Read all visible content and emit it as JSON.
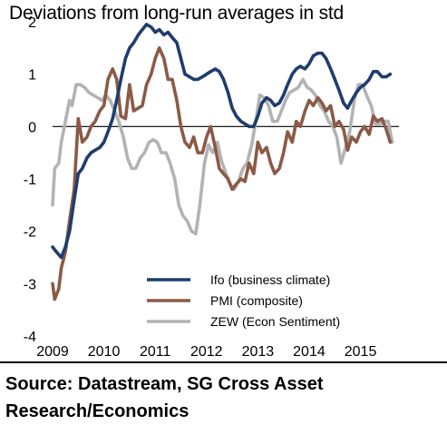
{
  "title": "Deviations from long-run averages in std",
  "source": "Source: Datastream, SG Cross Asset Research/Economics",
  "chart_data": {
    "type": "line",
    "title": "Deviations from long-run averages in std",
    "xlabel": "",
    "ylabel": "",
    "x_ticks": [
      "2009",
      "2010",
      "2011",
      "2012",
      "2013",
      "2014",
      "2015"
    ],
    "y_ticks": [
      2,
      1,
      0,
      -1,
      -2,
      -3,
      -4
    ],
    "xlim": [
      2009.0,
      2015.75
    ],
    "ylim": [
      -4,
      2
    ],
    "grid": "horizontal line at 0",
    "legend_position": "bottom-right",
    "series": [
      {
        "name": "Ifo (business climate)",
        "color": "#1f3d6e",
        "points": [
          [
            2009.0,
            -2.3
          ],
          [
            2009.08,
            -2.4
          ],
          [
            2009.17,
            -2.5
          ],
          [
            2009.25,
            -2.3
          ],
          [
            2009.33,
            -2.0
          ],
          [
            2009.42,
            -1.4
          ],
          [
            2009.5,
            -0.9
          ],
          [
            2009.58,
            -0.8
          ],
          [
            2009.67,
            -0.6
          ],
          [
            2009.75,
            -0.5
          ],
          [
            2009.83,
            -0.45
          ],
          [
            2009.92,
            -0.4
          ],
          [
            2010.0,
            -0.3
          ],
          [
            2010.08,
            -0.1
          ],
          [
            2010.17,
            0.15
          ],
          [
            2010.25,
            0.5
          ],
          [
            2010.33,
            0.9
          ],
          [
            2010.42,
            1.3
          ],
          [
            2010.5,
            1.5
          ],
          [
            2010.58,
            1.6
          ],
          [
            2010.67,
            1.75
          ],
          [
            2010.75,
            1.85
          ],
          [
            2010.83,
            1.95
          ],
          [
            2010.92,
            1.9
          ],
          [
            2011.0,
            1.8
          ],
          [
            2011.08,
            1.85
          ],
          [
            2011.17,
            1.75
          ],
          [
            2011.25,
            1.8
          ],
          [
            2011.33,
            1.7
          ],
          [
            2011.42,
            1.6
          ],
          [
            2011.5,
            1.3
          ],
          [
            2011.58,
            1.0
          ],
          [
            2011.67,
            0.95
          ],
          [
            2011.75,
            0.9
          ],
          [
            2011.83,
            0.9
          ],
          [
            2011.92,
            0.95
          ],
          [
            2012.0,
            1.0
          ],
          [
            2012.08,
            1.05
          ],
          [
            2012.17,
            1.1
          ],
          [
            2012.25,
            1.05
          ],
          [
            2012.33,
            0.9
          ],
          [
            2012.42,
            0.65
          ],
          [
            2012.5,
            0.35
          ],
          [
            2012.58,
            0.2
          ],
          [
            2012.67,
            0.1
          ],
          [
            2012.75,
            0.05
          ],
          [
            2012.83,
            0.0
          ],
          [
            2012.92,
            0.0
          ],
          [
            2013.0,
            0.2
          ],
          [
            2013.08,
            0.45
          ],
          [
            2013.17,
            0.55
          ],
          [
            2013.25,
            0.5
          ],
          [
            2013.33,
            0.4
          ],
          [
            2013.42,
            0.45
          ],
          [
            2013.5,
            0.6
          ],
          [
            2013.58,
            0.8
          ],
          [
            2013.67,
            1.0
          ],
          [
            2013.75,
            1.1
          ],
          [
            2013.83,
            1.15
          ],
          [
            2013.92,
            1.1
          ],
          [
            2014.0,
            1.2
          ],
          [
            2014.08,
            1.35
          ],
          [
            2014.17,
            1.4
          ],
          [
            2014.25,
            1.4
          ],
          [
            2014.33,
            1.3
          ],
          [
            2014.42,
            1.1
          ],
          [
            2014.5,
            0.9
          ],
          [
            2014.58,
            0.7
          ],
          [
            2014.67,
            0.45
          ],
          [
            2014.75,
            0.35
          ],
          [
            2014.83,
            0.5
          ],
          [
            2014.92,
            0.65
          ],
          [
            2015.0,
            0.75
          ],
          [
            2015.08,
            0.8
          ],
          [
            2015.17,
            0.9
          ],
          [
            2015.25,
            1.05
          ],
          [
            2015.33,
            1.05
          ],
          [
            2015.42,
            0.95
          ],
          [
            2015.5,
            0.95
          ],
          [
            2015.58,
            1.0
          ]
        ]
      },
      {
        "name": "PMI (composite)",
        "color": "#8b5a47",
        "points": [
          [
            2009.0,
            -3.0
          ],
          [
            2009.04,
            -3.3
          ],
          [
            2009.12,
            -3.1
          ],
          [
            2009.17,
            -2.7
          ],
          [
            2009.25,
            -2.4
          ],
          [
            2009.33,
            -1.8
          ],
          [
            2009.42,
            -1.2
          ],
          [
            2009.5,
            0.15
          ],
          [
            2009.58,
            -0.3
          ],
          [
            2009.67,
            -0.2
          ],
          [
            2009.75,
            0.0
          ],
          [
            2009.83,
            0.1
          ],
          [
            2009.92,
            0.3
          ],
          [
            2010.0,
            0.4
          ],
          [
            2010.08,
            0.9
          ],
          [
            2010.17,
            1.1
          ],
          [
            2010.25,
            0.9
          ],
          [
            2010.33,
            0.2
          ],
          [
            2010.42,
            0.15
          ],
          [
            2010.5,
            0.8
          ],
          [
            2010.58,
            0.3
          ],
          [
            2010.67,
            0.35
          ],
          [
            2010.75,
            0.4
          ],
          [
            2010.83,
            0.8
          ],
          [
            2010.92,
            1.0
          ],
          [
            2011.0,
            1.3
          ],
          [
            2011.08,
            1.5
          ],
          [
            2011.17,
            1.3
          ],
          [
            2011.25,
            0.9
          ],
          [
            2011.33,
            0.9
          ],
          [
            2011.42,
            0.5
          ],
          [
            2011.5,
            0.0
          ],
          [
            2011.58,
            -0.3
          ],
          [
            2011.67,
            -0.4
          ],
          [
            2011.75,
            -0.2
          ],
          [
            2011.83,
            -0.5
          ],
          [
            2011.92,
            -0.5
          ],
          [
            2012.0,
            -0.2
          ],
          [
            2012.08,
            0.0
          ],
          [
            2012.17,
            -0.4
          ],
          [
            2012.25,
            -0.8
          ],
          [
            2012.33,
            -0.9
          ],
          [
            2012.42,
            -1.0
          ],
          [
            2012.5,
            -1.2
          ],
          [
            2012.58,
            -1.1
          ],
          [
            2012.67,
            -1.0
          ],
          [
            2012.75,
            -1.05
          ],
          [
            2012.83,
            -0.7
          ],
          [
            2012.92,
            -0.9
          ],
          [
            2013.0,
            -0.3
          ],
          [
            2013.08,
            -0.5
          ],
          [
            2013.17,
            -0.4
          ],
          [
            2013.25,
            -0.7
          ],
          [
            2013.33,
            -0.9
          ],
          [
            2013.42,
            -0.8
          ],
          [
            2013.5,
            -0.5
          ],
          [
            2013.58,
            -0.1
          ],
          [
            2013.67,
            -0.3
          ],
          [
            2013.75,
            0.1
          ],
          [
            2013.83,
            0.0
          ],
          [
            2013.92,
            0.3
          ],
          [
            2014.0,
            0.5
          ],
          [
            2014.08,
            0.4
          ],
          [
            2014.17,
            0.55
          ],
          [
            2014.25,
            0.45
          ],
          [
            2014.33,
            0.3
          ],
          [
            2014.42,
            0.4
          ],
          [
            2014.5,
            0.0
          ],
          [
            2014.58,
            0.1
          ],
          [
            2014.67,
            -0.05
          ],
          [
            2014.75,
            -0.45
          ],
          [
            2014.83,
            -0.2
          ],
          [
            2014.92,
            -0.3
          ],
          [
            2015.0,
            -0.1
          ],
          [
            2015.08,
            0.0
          ],
          [
            2015.17,
            -0.15
          ],
          [
            2015.25,
            0.2
          ],
          [
            2015.33,
            0.1
          ],
          [
            2015.42,
            0.15
          ],
          [
            2015.5,
            -0.05
          ],
          [
            2015.58,
            -0.3
          ]
        ]
      },
      {
        "name": "ZEW (Econ Sentiment)",
        "color": "#b3b3b3",
        "points": [
          [
            2009.0,
            -1.5
          ],
          [
            2009.04,
            -0.8
          ],
          [
            2009.12,
            -0.7
          ],
          [
            2009.17,
            -0.3
          ],
          [
            2009.25,
            0.1
          ],
          [
            2009.33,
            0.5
          ],
          [
            2009.38,
            0.4
          ],
          [
            2009.46,
            0.8
          ],
          [
            2009.54,
            0.8
          ],
          [
            2009.62,
            0.75
          ],
          [
            2009.71,
            0.65
          ],
          [
            2009.79,
            0.6
          ],
          [
            2009.88,
            0.55
          ],
          [
            2009.96,
            0.5
          ],
          [
            2010.04,
            0.6
          ],
          [
            2010.12,
            0.5
          ],
          [
            2010.21,
            0.3
          ],
          [
            2010.29,
            0.1
          ],
          [
            2010.38,
            -0.2
          ],
          [
            2010.46,
            -0.6
          ],
          [
            2010.54,
            -0.8
          ],
          [
            2010.62,
            -0.8
          ],
          [
            2010.71,
            -0.6
          ],
          [
            2010.79,
            -0.5
          ],
          [
            2010.88,
            -0.3
          ],
          [
            2010.96,
            -0.25
          ],
          [
            2011.04,
            -0.3
          ],
          [
            2011.12,
            -0.5
          ],
          [
            2011.21,
            -0.5
          ],
          [
            2011.29,
            -0.7
          ],
          [
            2011.38,
            -1.0
          ],
          [
            2011.46,
            -1.5
          ],
          [
            2011.54,
            -1.7
          ],
          [
            2011.62,
            -1.8
          ],
          [
            2011.71,
            -2.0
          ],
          [
            2011.79,
            -2.05
          ],
          [
            2011.87,
            -1.5
          ],
          [
            2011.96,
            -0.7
          ],
          [
            2012.04,
            -0.35
          ],
          [
            2012.12,
            -0.5
          ],
          [
            2012.21,
            -0.3
          ],
          [
            2012.29,
            -0.65
          ],
          [
            2012.38,
            -0.9
          ],
          [
            2012.46,
            -1.1
          ],
          [
            2012.54,
            -1.2
          ],
          [
            2012.62,
            -1.05
          ],
          [
            2012.71,
            -0.8
          ],
          [
            2012.79,
            -0.7
          ],
          [
            2012.88,
            -0.35
          ],
          [
            2012.96,
            0.1
          ],
          [
            2013.04,
            0.6
          ],
          [
            2013.12,
            0.55
          ],
          [
            2013.21,
            0.4
          ],
          [
            2013.29,
            0.1
          ],
          [
            2013.38,
            0.1
          ],
          [
            2013.46,
            0.3
          ],
          [
            2013.54,
            0.5
          ],
          [
            2013.62,
            0.65
          ],
          [
            2013.71,
            0.7
          ],
          [
            2013.79,
            0.75
          ],
          [
            2013.88,
            0.9
          ],
          [
            2013.96,
            0.75
          ],
          [
            2014.04,
            0.7
          ],
          [
            2014.12,
            0.6
          ],
          [
            2014.21,
            0.4
          ],
          [
            2014.29,
            0.3
          ],
          [
            2014.38,
            0.1
          ],
          [
            2014.46,
            0.0
          ],
          [
            2014.54,
            -0.2
          ],
          [
            2014.62,
            -0.7
          ],
          [
            2014.71,
            -0.4
          ],
          [
            2014.79,
            -0.1
          ],
          [
            2014.88,
            0.5
          ],
          [
            2014.96,
            0.8
          ],
          [
            2015.04,
            0.8
          ],
          [
            2015.12,
            0.6
          ],
          [
            2015.21,
            0.4
          ],
          [
            2015.29,
            0.05
          ],
          [
            2015.38,
            0.05
          ],
          [
            2015.46,
            0.1
          ],
          [
            2015.54,
            0.1
          ],
          [
            2015.62,
            -0.3
          ]
        ]
      }
    ]
  }
}
